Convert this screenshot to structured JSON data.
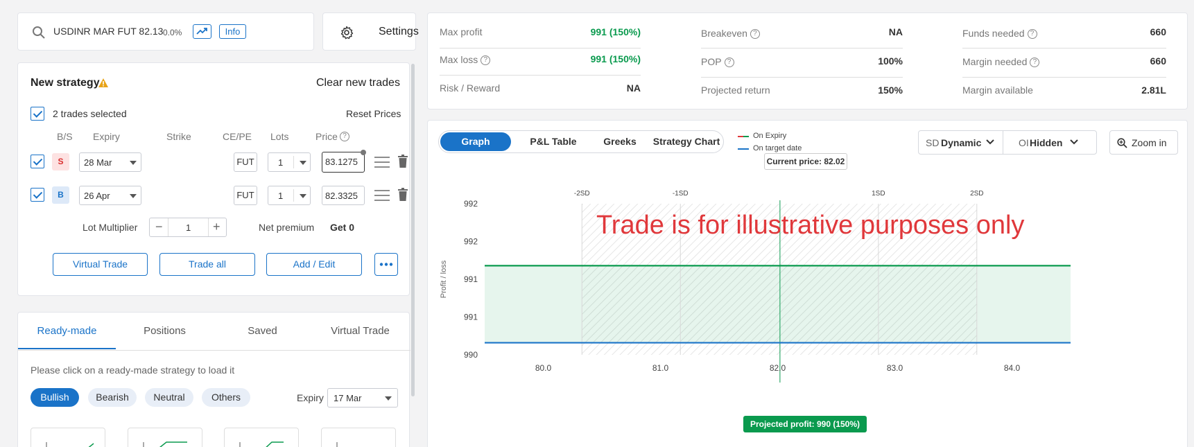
{
  "search": {
    "symbol": "USDINR MAR FUT 82.13",
    "change": "0.0%",
    "info_label": "Info",
    "settings_label": "Settings"
  },
  "strategy": {
    "title": "New strategy",
    "clear_label": "Clear new trades",
    "selected_text": "2 trades selected",
    "reset_label": "Reset Prices",
    "headers": {
      "bs": "B/S",
      "expiry": "Expiry",
      "strike": "Strike",
      "cepe": "CE/PE",
      "lots": "Lots",
      "price": "Price"
    },
    "trades": [
      {
        "side": "S",
        "expiry": "28 Mar",
        "type": "FUT",
        "lots": "1",
        "price": "83.1275"
      },
      {
        "side": "B",
        "expiry": "26 Apr",
        "type": "FUT",
        "lots": "1",
        "price": "82.3325"
      }
    ],
    "lot_multiplier_label": "Lot Multiplier",
    "lot_multiplier_value": "1",
    "net_premium_label": "Net premium",
    "net_premium_value": "Get 0",
    "buttons": {
      "virtual": "Virtual Trade",
      "trade_all": "Trade all",
      "add_edit": "Add / Edit"
    }
  },
  "bottom_tabs": {
    "tabs": [
      "Ready-made",
      "Positions",
      "Saved",
      "Virtual Trade"
    ],
    "active": 0,
    "hint": "Please click on a ready-made strategy to load it",
    "filters": [
      "Bullish",
      "Bearish",
      "Neutral",
      "Others"
    ],
    "active_filter": 0,
    "expiry_label": "Expiry",
    "expiry_value": "17 Mar"
  },
  "stats": {
    "max_profit_label": "Max profit",
    "max_profit": "991 (150%)",
    "max_loss_label": "Max loss",
    "max_loss": "991 (150%)",
    "rr_label": "Risk / Reward",
    "rr": "NA",
    "breakeven_label": "Breakeven",
    "breakeven": "NA",
    "pop_label": "POP",
    "pop": "100%",
    "proj_return_label": "Projected return",
    "proj_return": "150%",
    "funds_label": "Funds needed",
    "funds": "660",
    "margin_needed_label": "Margin needed",
    "margin_needed": "660",
    "margin_avail_label": "Margin available",
    "margin_avail": "2.81L"
  },
  "graph_tabs": {
    "tabs": [
      "Graph",
      "P&L Table",
      "Greeks",
      "Strategy Chart"
    ],
    "active": 0,
    "legend_expiry": "On Expiry",
    "legend_target": "On target date",
    "sd_prefix": "SD",
    "sd_value": "Dynamic",
    "oi_prefix": "OI",
    "oi_value": "Hidden",
    "zoom_label": "Zoom in"
  },
  "colors": {
    "accent": "#1a73c8",
    "profit": "#0a9a4e",
    "warning": "#e8a317",
    "watermark": "#e0383b"
  },
  "chart_data": {
    "type": "line",
    "current_price_label": "Current price: 82.02",
    "watermark": "Trade is for illustrative purposes only",
    "ylabel": "Profit / loss",
    "x_ticks": [
      "80.0",
      "81.0",
      "82.0",
      "83.0",
      "84.0"
    ],
    "y_ticks": [
      "992",
      "992",
      "991",
      "991",
      "990"
    ],
    "sd_labels": [
      "-2SD",
      "-1SD",
      "1SD",
      "2SD"
    ],
    "sd_x": [
      80.33,
      81.17,
      82.86,
      83.7
    ],
    "current_price": 82.02,
    "xlim": [
      79.5,
      84.5
    ],
    "ylim": [
      990,
      992
    ],
    "series": [
      {
        "name": "On Expiry",
        "color": "#0a9a4e",
        "x": [
          79.5,
          84.5
        ],
        "y": [
          991.18,
          991.18
        ]
      },
      {
        "name": "On target date",
        "color": "#1a73c8",
        "x": [
          79.5,
          84.5
        ],
        "y": [
          990.16,
          990.16
        ]
      }
    ],
    "projected_profit_label": "Projected profit: 990 (150%)"
  }
}
